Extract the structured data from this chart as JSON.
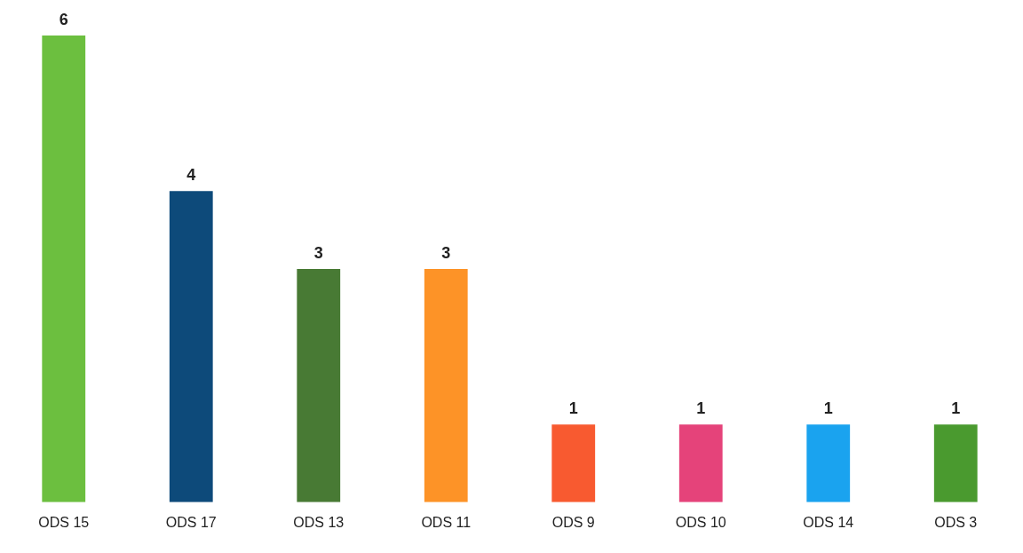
{
  "chart_data": {
    "type": "bar",
    "categories": [
      "ODS 15",
      "ODS 17",
      "ODS 13",
      "ODS 11",
      "ODS 9",
      "ODS 10",
      "ODS 14",
      "ODS 3"
    ],
    "values": [
      6,
      4,
      3,
      3,
      1,
      1,
      1,
      1
    ],
    "colors": [
      "#6cbf3f",
      "#0d4a7a",
      "#487a34",
      "#fd9327",
      "#f85a30",
      "#e5437a",
      "#1aa3ef",
      "#4a9a2f"
    ],
    "data_labels": true,
    "grid": false,
    "legend": false
  }
}
